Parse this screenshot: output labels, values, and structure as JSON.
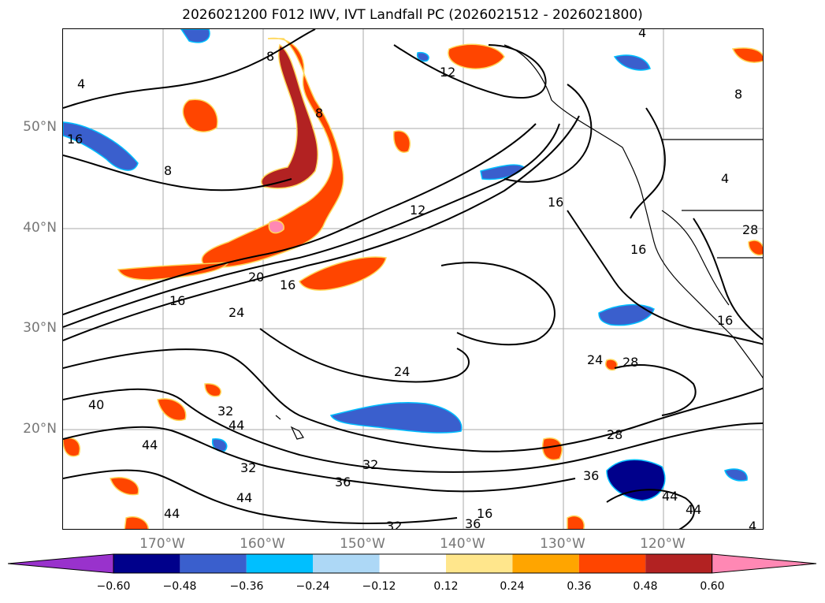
{
  "title": "2026021200 F012 IWV, IVT Landfall PC (2026021512 - 2026021800)",
  "lat_labels": [
    "50°N",
    "40°N",
    "30°N",
    "20°N"
  ],
  "lon_labels": [
    "170°W",
    "160°W",
    "150°W",
    "140°W",
    "130°W",
    "120°W"
  ],
  "colorbar": {
    "ticks": [
      "−0.60",
      "−0.48",
      "−0.36",
      "−0.24",
      "−0.12",
      "0.12",
      "0.24",
      "0.36",
      "0.48",
      "0.60"
    ],
    "colors": [
      "#9932CC",
      "#00008B",
      "#3A5FCD",
      "#00BFFF",
      "#ADD8F6",
      "#FFFFFF",
      "#FFE68C",
      "#FFA500",
      "#FF4500",
      "#B22222",
      "#FF88B4"
    ]
  },
  "contour_labels": [
    "4",
    "8",
    "12",
    "16",
    "16",
    "8",
    "8",
    "12",
    "16",
    "16",
    "16",
    "20",
    "24",
    "24",
    "24",
    "28",
    "28",
    "32",
    "32",
    "32",
    "36",
    "36",
    "36",
    "40",
    "44",
    "44",
    "44",
    "44",
    "44",
    "16",
    "8",
    "4",
    "4",
    "4",
    "44",
    "28",
    "16",
    "32"
  ]
}
